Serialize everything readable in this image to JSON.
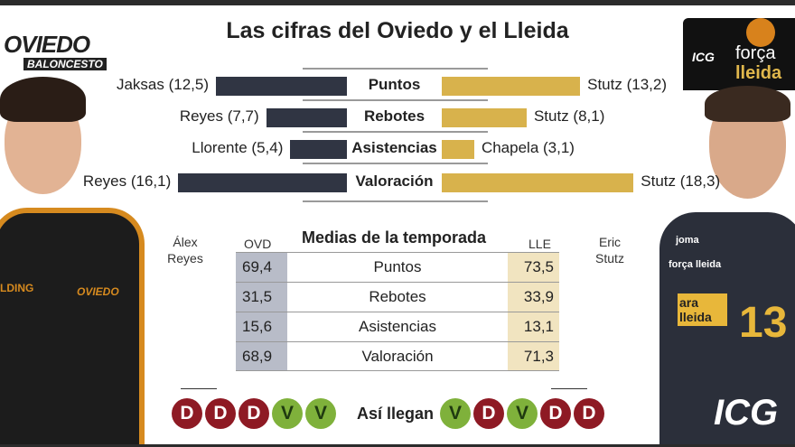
{
  "title": "Las cifras del Oviedo y el Lleida",
  "logos": {
    "left": "OVIEDO BALONCESTO",
    "right": "ICG Software força lleida"
  },
  "colors": {
    "oviedo": "#303543",
    "lleida": "#d8b24c",
    "win": "#7fb13b",
    "loss": "#8e1a24"
  },
  "players": {
    "left": {
      "first": "Álex",
      "last": "Reyes"
    },
    "right": {
      "first": "Eric",
      "last": "Stutz"
    }
  },
  "chart_data": {
    "type": "bar",
    "title": "Las cifras del Oviedo y el Lleida",
    "categories": [
      "Puntos",
      "Rebotes",
      "Asistencias",
      "Valoración"
    ],
    "series": [
      {
        "name": "Oviedo",
        "values": [
          12.5,
          7.7,
          5.4,
          16.1
        ],
        "labels": [
          "Jaksas (12,5)",
          "Reyes (7,7)",
          "Llorente (5,4)",
          "Reyes (16,1)"
        ]
      },
      {
        "name": "Lleida",
        "values": [
          13.2,
          8.1,
          3.1,
          18.3
        ],
        "labels": [
          "Stutz (13,2)",
          "Stutz (8,1)",
          "Chapela (3,1)",
          "Stutz (18,3)"
        ]
      }
    ]
  },
  "table": {
    "title": "Medias de la temporada",
    "col_left": "OVD",
    "col_right": "LLE",
    "rows": [
      {
        "ovd": "69,4",
        "stat": "Puntos",
        "lle": "73,5"
      },
      {
        "ovd": "31,5",
        "stat": "Rebotes",
        "lle": "33,9"
      },
      {
        "ovd": "15,6",
        "stat": "Asistencias",
        "lle": "13,1"
      },
      {
        "ovd": "68,9",
        "stat": "Valoración",
        "lle": "71,3"
      }
    ]
  },
  "form": {
    "label": "Así llegan",
    "oviedo": [
      "D",
      "D",
      "D",
      "V",
      "V"
    ],
    "lleida": [
      "V",
      "D",
      "V",
      "D",
      "D"
    ]
  },
  "jerseys": {
    "left_brand": "LDING",
    "left_team": "OVIEDO",
    "right_brand": "joma",
    "right_sponsor": "força lleida",
    "right_ara": "ara lleida",
    "right_number": "13",
    "right_bottom": "ICG"
  }
}
